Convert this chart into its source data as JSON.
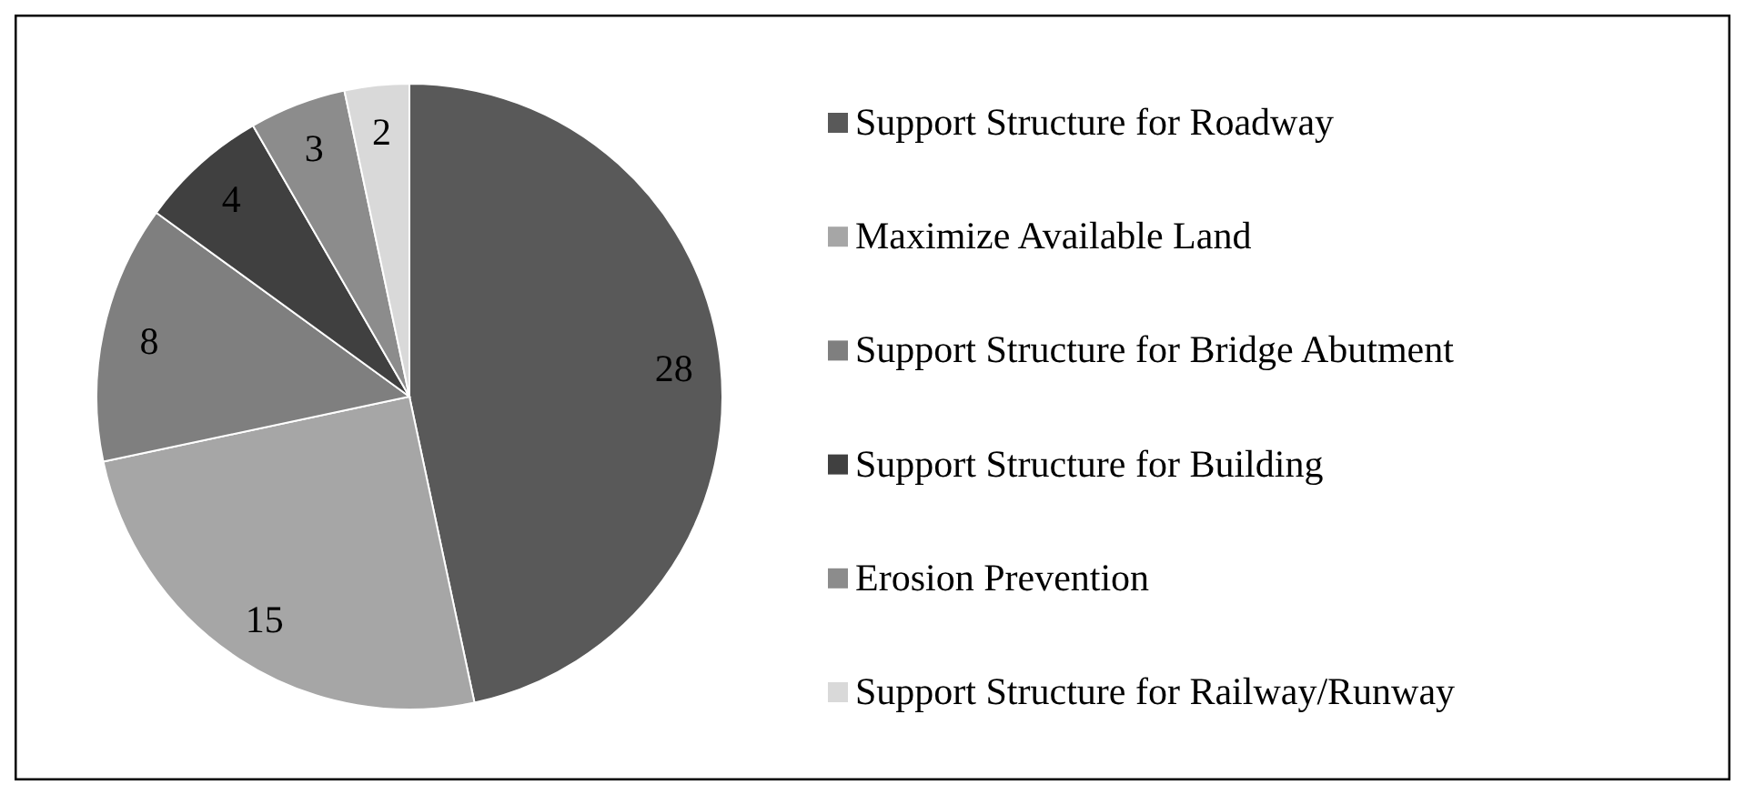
{
  "chart_data": {
    "type": "pie",
    "categories": [
      "Support Structure for Roadway",
      "Maximize Available Land",
      "Support Structure for Bridge Abutment",
      "Support Structure for Building",
      "Erosion Prevention",
      "Support Structure for Railway/Runway"
    ],
    "values": [
      28,
      15,
      8,
      4,
      3,
      2
    ],
    "colors": [
      "#595959",
      "#a6a6a6",
      "#7f7f7f",
      "#404040",
      "#8c8c8c",
      "#d9d9d9"
    ],
    "data_labels": true,
    "legend": "right"
  }
}
